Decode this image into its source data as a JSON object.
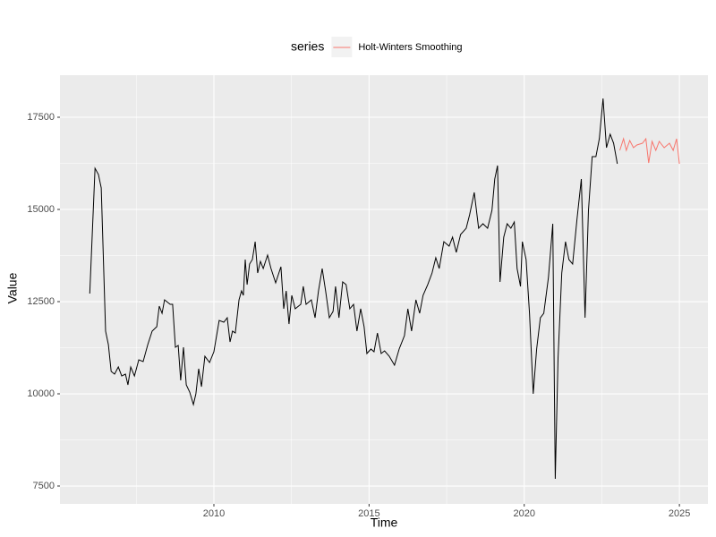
{
  "chart_data": {
    "type": "line",
    "x_label": "Time",
    "y_label": "Value",
    "legend_title": "series",
    "legend_position": "top",
    "xlim": [
      2005.04,
      2025.92
    ],
    "ylim": [
      7015,
      18641
    ],
    "xticks": [
      2010,
      2015,
      2020,
      2025
    ],
    "yticks": [
      7500,
      10000,
      12500,
      15000,
      17500
    ],
    "x_minor_ticks": [
      2007.5,
      2012.5,
      2017.5,
      2022.5
    ],
    "y_minor_ticks": [
      8750,
      11250,
      13750,
      16250
    ],
    "grid": true,
    "series": [
      {
        "color": "#000000",
        "x": [
          2006.0,
          2006.17,
          2006.28,
          2006.37,
          2006.51,
          2006.6,
          2006.69,
          2006.8,
          2006.92,
          2007.03,
          2007.15,
          2007.23,
          2007.32,
          2007.44,
          2007.58,
          2007.72,
          2007.87,
          2008.01,
          2008.16,
          2008.24,
          2008.33,
          2008.41,
          2008.59,
          2008.67,
          2008.76,
          2008.85,
          2008.93,
          2009.02,
          2009.11,
          2009.22,
          2009.34,
          2009.42,
          2009.51,
          2009.6,
          2009.71,
          2009.86,
          2010.0,
          2010.17,
          2010.32,
          2010.43,
          2010.52,
          2010.6,
          2010.69,
          2010.81,
          2010.89,
          2010.95,
          2011.01,
          2011.07,
          2011.15,
          2011.24,
          2011.33,
          2011.41,
          2011.5,
          2011.59,
          2011.73,
          2011.84,
          2011.99,
          2012.16,
          2012.25,
          2012.33,
          2012.42,
          2012.51,
          2012.62,
          2012.8,
          2012.88,
          2012.97,
          2013.14,
          2013.26,
          2013.37,
          2013.49,
          2013.6,
          2013.72,
          2013.84,
          2013.92,
          2014.03,
          2014.15,
          2014.26,
          2014.38,
          2014.5,
          2014.61,
          2014.73,
          2014.84,
          2014.93,
          2015.06,
          2015.16,
          2015.27,
          2015.39,
          2015.5,
          2015.65,
          2015.82,
          2015.97,
          2016.14,
          2016.25,
          2016.37,
          2016.51,
          2016.63,
          2016.74,
          2016.89,
          2017.03,
          2017.15,
          2017.26,
          2017.41,
          2017.58,
          2017.69,
          2017.81,
          2017.95,
          2018.13,
          2018.24,
          2018.39,
          2018.53,
          2018.67,
          2018.82,
          2018.96,
          2019.05,
          2019.14,
          2019.22,
          2019.34,
          2019.45,
          2019.57,
          2019.68,
          2019.77,
          2019.88,
          2019.94,
          2020.06,
          2020.17,
          2020.29,
          2020.4,
          2020.52,
          2020.63,
          2020.78,
          2020.92,
          2021.0,
          2021.09,
          2021.21,
          2021.33,
          2021.44,
          2021.56,
          2021.7,
          2021.84,
          2021.96,
          2022.07,
          2022.19,
          2022.31,
          2022.42,
          2022.54,
          2022.65,
          2022.77,
          2022.88,
          2023.0
        ],
        "values": [
          12718,
          16116,
          15947,
          15583,
          11700,
          11335,
          10607,
          10534,
          10728,
          10485,
          10534,
          10243,
          10728,
          10485,
          10922,
          10874,
          11335,
          11700,
          11820,
          12379,
          12184,
          12549,
          12427,
          12427,
          11262,
          11311,
          10364,
          11262,
          10243,
          10049,
          9709,
          10000,
          10680,
          10194,
          11019,
          10850,
          11141,
          11990,
          11942,
          12063,
          11408,
          11700,
          11650,
          12549,
          12791,
          12670,
          13641,
          12961,
          13519,
          13641,
          14126,
          13277,
          13592,
          13398,
          13762,
          13398,
          13010,
          13447,
          12306,
          12791,
          11893,
          12670,
          12306,
          12427,
          12913,
          12427,
          12549,
          12063,
          12791,
          13398,
          12791,
          12063,
          12233,
          12913,
          12063,
          13034,
          12961,
          12306,
          12427,
          11700,
          12306,
          11820,
          11092,
          11214,
          11141,
          11650,
          11092,
          11165,
          11019,
          10777,
          11214,
          11578,
          12306,
          11700,
          12549,
          12184,
          12670,
          12961,
          13277,
          13689,
          13398,
          14126,
          14005,
          14248,
          13835,
          14320,
          14490,
          14854,
          15461,
          14490,
          14612,
          14490,
          14976,
          15825,
          16189,
          13034,
          14248,
          14612,
          14490,
          14660,
          13398,
          12913,
          14126,
          13641,
          12184,
          10000,
          11214,
          12063,
          12184,
          13155,
          14612,
          7694,
          10971,
          13277,
          14126,
          13641,
          13519,
          14733,
          15825,
          12063,
          14976,
          16432,
          16432,
          16917,
          18010,
          16675,
          17039,
          16796,
          16238
        ]
      },
      {
        "name": "Holt-Winters Smoothing",
        "color": "#F8766D",
        "x": [
          2023.08,
          2023.2,
          2023.29,
          2023.4,
          2023.52,
          2023.63,
          2023.81,
          2023.92,
          2024.01,
          2024.12,
          2024.24,
          2024.35,
          2024.51,
          2024.68,
          2024.8,
          2024.91,
          2025.0
        ],
        "values": [
          16602,
          16917,
          16602,
          16869,
          16675,
          16748,
          16796,
          16917,
          16262,
          16845,
          16602,
          16845,
          16675,
          16796,
          16602,
          16917,
          16238
        ]
      }
    ]
  }
}
